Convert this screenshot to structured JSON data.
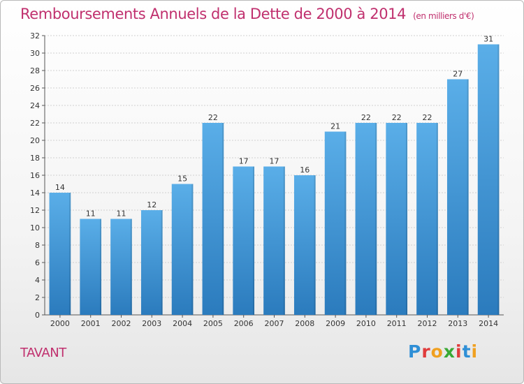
{
  "header": {
    "title": "Remboursements Annuels de la Dette de 2000 à 2014",
    "subtitle": "(en milliers d'€)"
  },
  "footer": {
    "location": "TAVANT",
    "brand": "Proxiti",
    "brand_colors": [
      "#2f8fd6",
      "#e03c3c",
      "#f0a020",
      "#39a935",
      "#e03c3c",
      "#2f8fd6",
      "#f0a020"
    ]
  },
  "colors": {
    "bar_light": "#5aaee8",
    "bar_dark": "#2b7bbd",
    "title": "#c0306e",
    "grid": "#d0d0d0"
  },
  "chart_data": {
    "type": "bar",
    "categories": [
      "2000",
      "2001",
      "2002",
      "2003",
      "2004",
      "2005",
      "2006",
      "2007",
      "2008",
      "2009",
      "2010",
      "2011",
      "2012",
      "2013",
      "2014"
    ],
    "values": [
      14,
      11,
      11,
      12,
      15,
      22,
      17,
      17,
      16,
      21,
      22,
      22,
      22,
      27,
      31
    ],
    "data_labels": [
      "14",
      "11",
      "11",
      "12",
      "15",
      "22",
      "17",
      "17",
      "16",
      "21",
      "22",
      "22",
      "22",
      "27",
      "31"
    ],
    "title": "Remboursements Annuels de la Dette de 2000 à 2014",
    "xlabel": "",
    "ylabel": "",
    "ylim": [
      0,
      32
    ],
    "yticks": [
      "0",
      "2",
      "4",
      "6",
      "8",
      "10",
      "12",
      "14",
      "16",
      "18",
      "20",
      "22",
      "24",
      "26",
      "28",
      "30",
      "32"
    ],
    "grid": true,
    "legend": "none"
  }
}
